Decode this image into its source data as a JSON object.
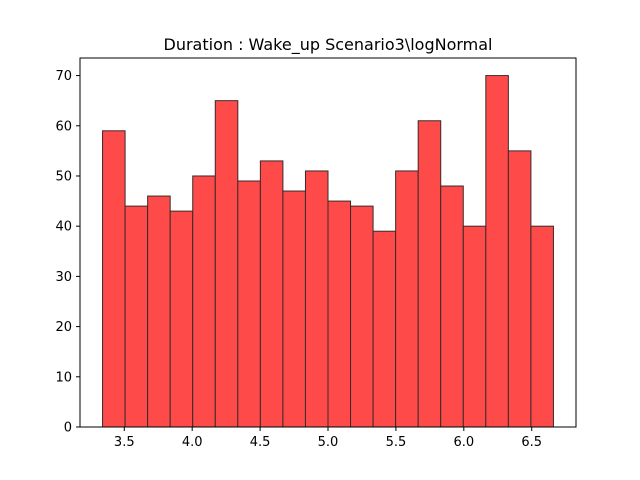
{
  "chart_data": {
    "type": "bar",
    "title": "Duration : Wake_up Scenario3\\logNormal",
    "xlabel": "",
    "ylabel": "",
    "bin_edges": [
      3.34,
      3.506,
      3.672,
      3.838,
      4.004,
      4.17,
      4.336,
      4.502,
      4.668,
      4.834,
      5.0,
      5.166,
      5.332,
      5.498,
      5.664,
      5.83,
      5.996,
      6.162,
      6.328,
      6.494,
      6.66
    ],
    "values": [
      59,
      44,
      46,
      43,
      50,
      65,
      49,
      53,
      47,
      51,
      45,
      44,
      39,
      51,
      61,
      48,
      40,
      70,
      55,
      40
    ],
    "xlim": [
      3.174,
      6.826
    ],
    "ylim": [
      0,
      73.5
    ],
    "xticks": [
      3.5,
      4.0,
      4.5,
      5.0,
      5.5,
      6.0,
      6.5
    ],
    "xtick_labels": [
      "3.5",
      "4.0",
      "4.5",
      "5.0",
      "5.5",
      "6.0",
      "6.5"
    ],
    "yticks": [
      0,
      10,
      20,
      30,
      40,
      50,
      60,
      70
    ],
    "ytick_labels": [
      "0",
      "10",
      "20",
      "30",
      "40",
      "50",
      "60",
      "70"
    ],
    "bar_color": "#ff4a4a",
    "edge_color": "#3a2a2a",
    "grid": false,
    "legend": "none"
  }
}
